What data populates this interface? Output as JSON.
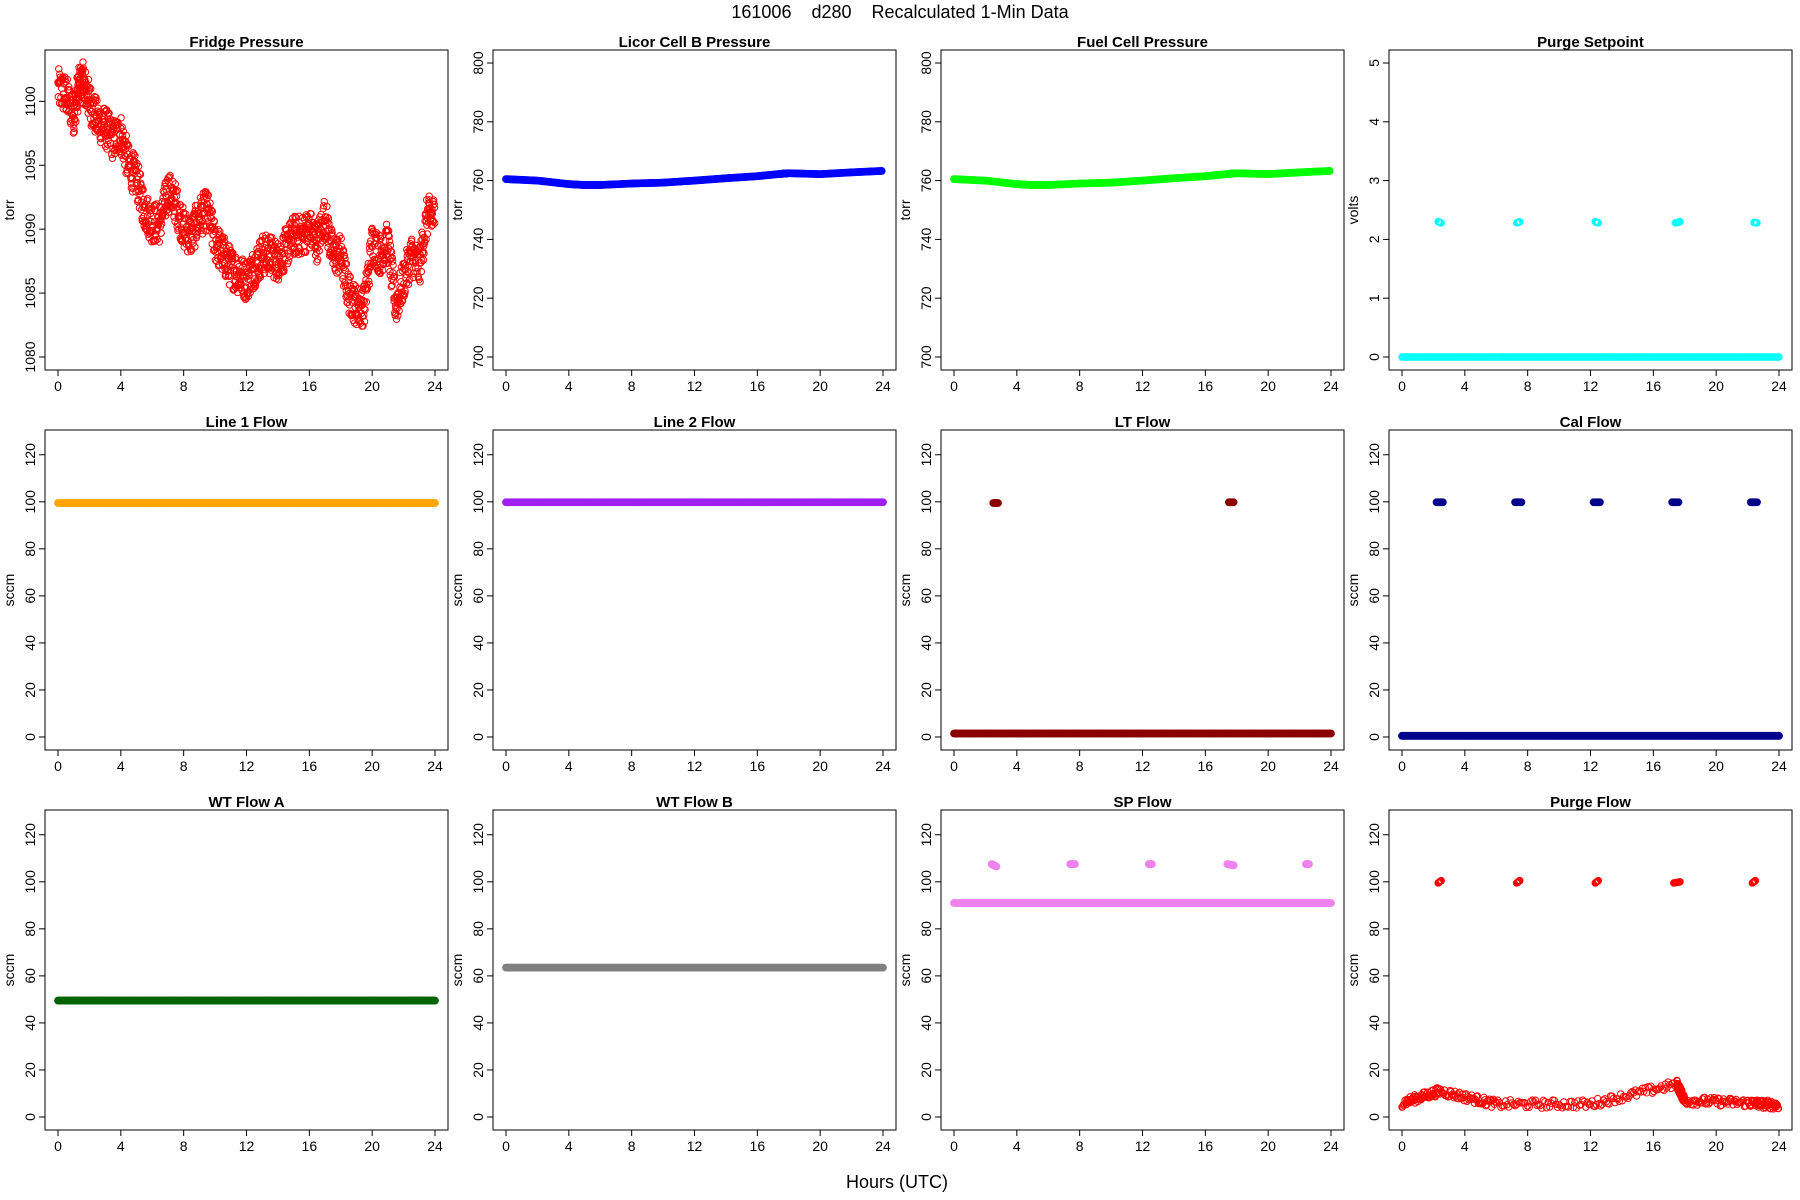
{
  "figure": {
    "title": "161006    d280    Recalculated 1-Min Data",
    "xlabel": "Hours (UTC)"
  },
  "chart_data": [
    {
      "type": "scatter",
      "title": "Fridge Pressure",
      "ylabel": "torr",
      "color": "#ff0000",
      "marker": "open-circle",
      "xlim": [
        0,
        24
      ],
      "ylim": [
        1080,
        1103
      ],
      "xticks": [
        0,
        4,
        8,
        12,
        16,
        20,
        24
      ],
      "yticks": [
        1080,
        1085,
        1090,
        1095,
        1100
      ],
      "series": [
        {
          "x": [
            0,
            0.5,
            1,
            1.3,
            1.6,
            2,
            2.5,
            3,
            3.5,
            4,
            4.5,
            5,
            5.5,
            6,
            6.5,
            7,
            7.5,
            8,
            8.5,
            9,
            9.5,
            10,
            10.5,
            11,
            11.5,
            12,
            12.5,
            13,
            13.5,
            14,
            14.5,
            15,
            15.5,
            16,
            16.5,
            17,
            17.5,
            18,
            18.5,
            19,
            19.5,
            20,
            20.5,
            21,
            21.5,
            22,
            22.5,
            23,
            23.5,
            24
          ],
          "y": [
            1101,
            1100.5,
            1099,
            1101,
            1101.5,
            1100,
            1098.5,
            1098,
            1097,
            1097.5,
            1095,
            1094,
            1091.5,
            1090.5,
            1090.5,
            1093,
            1092,
            1090,
            1089.5,
            1091,
            1091.5,
            1089,
            1088,
            1087,
            1086.5,
            1086,
            1087,
            1088,
            1088,
            1087.5,
            1088.5,
            1089.5,
            1089.5,
            1090,
            1089,
            1091,
            1088,
            1088,
            1085,
            1084,
            1084,
            1089,
            1088,
            1089,
            1084,
            1086,
            1088,
            1087,
            1091,
            1091
          ]
        }
      ]
    },
    {
      "type": "scatter",
      "title": "Licor Cell B Pressure",
      "ylabel": "torr",
      "color": "#0000ff",
      "marker": "filled-circle",
      "xlim": [
        0,
        24
      ],
      "ylim": [
        700,
        800
      ],
      "xticks": [
        0,
        4,
        8,
        12,
        16,
        20,
        24
      ],
      "yticks": [
        700,
        720,
        740,
        760,
        780,
        800
      ],
      "series": [
        {
          "x": [
            0,
            2,
            4,
            5,
            6,
            8,
            10,
            12,
            14,
            16,
            17.5,
            18,
            20,
            22,
            24
          ],
          "y": [
            760.5,
            760,
            758.8,
            758.5,
            758.5,
            759,
            759.3,
            760,
            760.8,
            761.5,
            762.3,
            762.5,
            762.2,
            762.8,
            763.3
          ]
        }
      ]
    },
    {
      "type": "scatter",
      "title": "Fuel Cell Pressure",
      "ylabel": "torr",
      "color": "#00ff00",
      "marker": "filled-circle",
      "xlim": [
        0,
        24
      ],
      "ylim": [
        700,
        800
      ],
      "xticks": [
        0,
        4,
        8,
        12,
        16,
        20,
        24
      ],
      "yticks": [
        700,
        720,
        740,
        760,
        780,
        800
      ],
      "series": [
        {
          "x": [
            0,
            2,
            4,
            5,
            6,
            8,
            10,
            12,
            14,
            16,
            17.5,
            18,
            20,
            22,
            24
          ],
          "y": [
            760.5,
            760,
            758.8,
            758.5,
            758.5,
            759,
            759.3,
            760,
            760.8,
            761.5,
            762.3,
            762.5,
            762.2,
            762.8,
            763.3
          ]
        }
      ]
    },
    {
      "type": "scatter",
      "title": "Purge Setpoint",
      "ylabel": "volts",
      "color": "#00ffff",
      "marker": "open-circle",
      "xlim": [
        0,
        24
      ],
      "ylim": [
        0,
        5
      ],
      "xticks": [
        0,
        4,
        8,
        12,
        16,
        20,
        24
      ],
      "yticks": [
        0,
        1,
        2,
        3,
        4,
        5
      ],
      "series": [
        {
          "x": [
            2.3,
            2.5,
            7.3,
            7.5,
            12.3,
            12.5,
            17.4,
            17.7,
            22.4,
            22.6
          ],
          "y": [
            2.3,
            2.28,
            2.28,
            2.3,
            2.3,
            2.28,
            2.28,
            2.3,
            2.29,
            2.28
          ]
        },
        {
          "x": [
            0,
            24
          ],
          "y": [
            0,
            0
          ]
        }
      ]
    },
    {
      "type": "scatter",
      "title": "Line 1 Flow",
      "ylabel": "sccm",
      "color": "#ffa500",
      "marker": "filled-circle",
      "xlim": [
        0,
        24
      ],
      "ylim": [
        0,
        125
      ],
      "xticks": [
        0,
        4,
        8,
        12,
        16,
        20,
        24
      ],
      "yticks": [
        0,
        20,
        40,
        60,
        80,
        100,
        120
      ],
      "series": [
        {
          "x": [
            0,
            24
          ],
          "y": [
            99.5,
            99.5
          ]
        }
      ]
    },
    {
      "type": "scatter",
      "title": "Line 2 Flow",
      "ylabel": "sccm",
      "color": "#a020f0",
      "marker": "filled-circle",
      "xlim": [
        0,
        24
      ],
      "ylim": [
        0,
        125
      ],
      "xticks": [
        0,
        4,
        8,
        12,
        16,
        20,
        24
      ],
      "yticks": [
        0,
        20,
        40,
        60,
        80,
        100,
        120
      ],
      "series": [
        {
          "x": [
            0,
            24
          ],
          "y": [
            99.8,
            99.8
          ]
        }
      ]
    },
    {
      "type": "scatter",
      "title": "LT Flow",
      "ylabel": "sccm",
      "color": "#8b0000",
      "marker": "filled-circle",
      "xlim": [
        0,
        24
      ],
      "ylim": [
        0,
        125
      ],
      "xticks": [
        0,
        4,
        8,
        12,
        16,
        20,
        24
      ],
      "yticks": [
        0,
        20,
        40,
        60,
        80,
        100,
        120
      ],
      "series": [
        {
          "x": [
            2.5,
            2.8,
            17.5,
            17.8
          ],
          "y": [
            99.5,
            99.5,
            99.8,
            99.8
          ]
        },
        {
          "x": [
            0,
            24
          ],
          "y": [
            1.5,
            1.5
          ]
        }
      ]
    },
    {
      "type": "scatter",
      "title": "Cal Flow",
      "ylabel": "sccm",
      "color": "#00008b",
      "marker": "filled-circle",
      "xlim": [
        0,
        24
      ],
      "ylim": [
        0,
        125
      ],
      "xticks": [
        0,
        4,
        8,
        12,
        16,
        20,
        24
      ],
      "yticks": [
        0,
        20,
        40,
        60,
        80,
        100,
        120
      ],
      "series": [
        {
          "x": [
            2.2,
            2.6,
            7.2,
            7.6,
            12.2,
            12.6,
            17.2,
            17.6,
            22.2,
            22.6
          ],
          "y": [
            99.8,
            99.8,
            99.8,
            99.8,
            99.8,
            99.8,
            99.8,
            99.8,
            99.8,
            99.8
          ]
        },
        {
          "x": [
            0,
            24
          ],
          "y": [
            0.5,
            0.5
          ]
        }
      ]
    },
    {
      "type": "scatter",
      "title": "WT Flow A",
      "ylabel": "sccm",
      "color": "#006400",
      "marker": "filled-circle",
      "xlim": [
        0,
        24
      ],
      "ylim": [
        0,
        125
      ],
      "xticks": [
        0,
        4,
        8,
        12,
        16,
        20,
        24
      ],
      "yticks": [
        0,
        20,
        40,
        60,
        80,
        100,
        120
      ],
      "series": [
        {
          "x": [
            0,
            24
          ],
          "y": [
            49.5,
            49.5
          ]
        }
      ]
    },
    {
      "type": "scatter",
      "title": "WT Flow B",
      "ylabel": "sccm",
      "color": "#808080",
      "marker": "filled-circle",
      "xlim": [
        0,
        24
      ],
      "ylim": [
        0,
        125
      ],
      "xticks": [
        0,
        4,
        8,
        12,
        16,
        20,
        24
      ],
      "yticks": [
        0,
        20,
        40,
        60,
        80,
        100,
        120
      ],
      "series": [
        {
          "x": [
            0,
            24
          ],
          "y": [
            63.5,
            63.5
          ]
        }
      ]
    },
    {
      "type": "scatter",
      "title": "SP Flow",
      "ylabel": "sccm",
      "color": "#ee82ee",
      "marker": "filled-circle",
      "xlim": [
        0,
        24
      ],
      "ylim": [
        0,
        125
      ],
      "xticks": [
        0,
        4,
        8,
        12,
        16,
        20,
        24
      ],
      "yticks": [
        0,
        20,
        40,
        60,
        80,
        100,
        120
      ],
      "series": [
        {
          "x": [
            2.4,
            2.7,
            7.4,
            7.7,
            12.4,
            12.6,
            17.4,
            17.8,
            22.4,
            22.6
          ],
          "y": [
            107.5,
            106.5,
            107.5,
            107.5,
            107.5,
            107.5,
            107.5,
            107,
            107.5,
            107.5
          ]
        },
        {
          "x": [
            0,
            24
          ],
          "y": [
            91,
            91
          ]
        }
      ]
    },
    {
      "type": "scatter",
      "title": "Purge Flow",
      "ylabel": "sccm",
      "color": "#ff0000",
      "marker": "open-circle",
      "xlim": [
        0,
        24
      ],
      "ylim": [
        0,
        125
      ],
      "xticks": [
        0,
        4,
        8,
        12,
        16,
        20,
        24
      ],
      "yticks": [
        0,
        20,
        40,
        60,
        80,
        100,
        120
      ],
      "series": [
        {
          "x": [
            2.3,
            2.5,
            7.3,
            7.5,
            12.3,
            12.5,
            17.3,
            17.7,
            22.3,
            22.5
          ],
          "y": [
            99.5,
            100.5,
            99.5,
            100.5,
            99.5,
            100.5,
            99.5,
            100,
            99.5,
            100.5
          ]
        },
        {
          "x": [
            0,
            2.4,
            6,
            12,
            17.5,
            18,
            22,
            24
          ],
          "y": [
            6,
            11,
            5.5,
            5.5,
            14,
            7,
            6,
            5
          ]
        }
      ]
    }
  ]
}
